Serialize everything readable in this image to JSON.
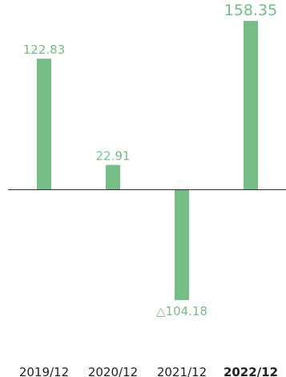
{
  "chart_data": {
    "type": "bar",
    "categories": [
      "2019/12",
      "2020/12",
      "2021/12",
      "2022/12"
    ],
    "values": [
      122.83,
      22.91,
      -104.18,
      158.35
    ],
    "value_labels": [
      "122.83",
      "22.91",
      "△104.18",
      "158.35"
    ],
    "highlight_index": 3,
    "ylim": [
      -166,
      178
    ],
    "grid": false,
    "bar_color": "#74bd87",
    "baseline_color": "#333333",
    "label_color": "#74bd87",
    "tick_color": "#222222"
  }
}
